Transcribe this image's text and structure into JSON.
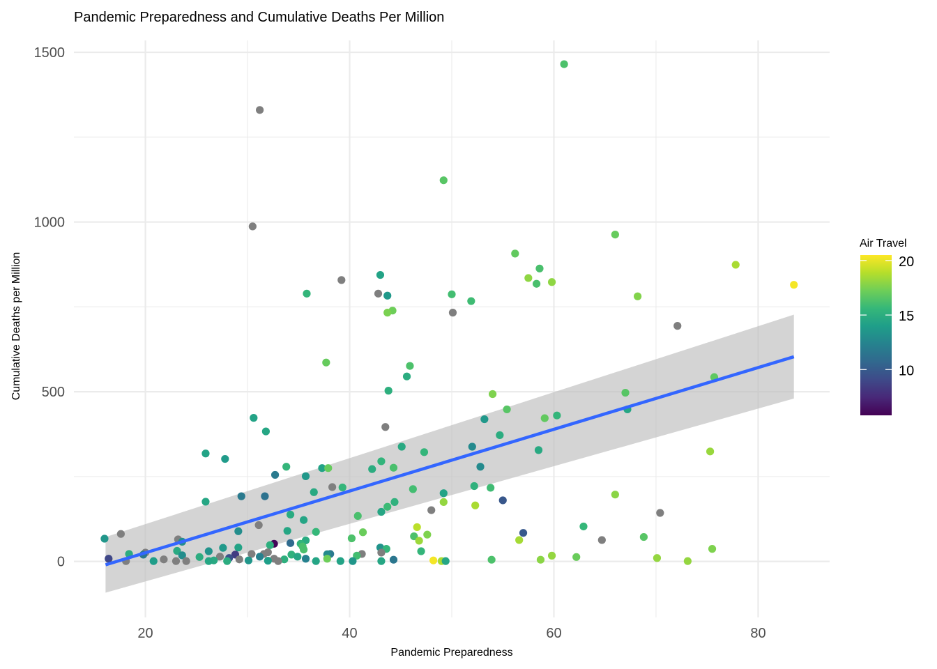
{
  "chart_data": {
    "type": "scatter",
    "title": "Pandemic Preparedness and Cumulative Deaths Per Million",
    "xlabel": "Pandemic Preparedness",
    "ylabel": "Cumulative Deaths per Million",
    "xlim": [
      13,
      87
    ],
    "ylim": [
      -165,
      1535
    ],
    "xticks": [
      20,
      40,
      60,
      80
    ],
    "yticks": [
      0,
      500,
      1000,
      1500
    ],
    "grid": true,
    "color_legend": {
      "title": "Air Travel",
      "ticks": [
        10,
        15,
        20
      ],
      "range": [
        5.8,
        20.5
      ],
      "na_color": "#7f7f7f",
      "palette": [
        "#440154",
        "#482878",
        "#3e4a89",
        "#31688e",
        "#26828e",
        "#1f9e89",
        "#35b779",
        "#6ece58",
        "#b5de2b",
        "#fde725"
      ]
    },
    "trend": {
      "method": "linear fit with confidence band",
      "x": [
        16.1,
        83.5
      ],
      "y": [
        -10,
        603
      ],
      "band_lower": [
        -92,
        480
      ],
      "band_upper": [
        72,
        727
      ],
      "color": "#3366ff",
      "band_color": "#bdbdbd"
    },
    "points": [
      {
        "x": 61.0,
        "y": 1465,
        "c": 16.3
      },
      {
        "x": 31.2,
        "y": 1330,
        "c": null
      },
      {
        "x": 49.2,
        "y": 1123,
        "c": 16.6
      },
      {
        "x": 30.5,
        "y": 987,
        "c": null
      },
      {
        "x": 66.0,
        "y": 963,
        "c": 17.0
      },
      {
        "x": 56.2,
        "y": 907,
        "c": 16.9
      },
      {
        "x": 77.8,
        "y": 874,
        "c": 18.6
      },
      {
        "x": 58.6,
        "y": 863,
        "c": 16.2
      },
      {
        "x": 43.0,
        "y": 844,
        "c": 14.3
      },
      {
        "x": 57.5,
        "y": 835,
        "c": 18.0
      },
      {
        "x": 39.2,
        "y": 829,
        "c": null
      },
      {
        "x": 59.8,
        "y": 823,
        "c": 18.0
      },
      {
        "x": 58.3,
        "y": 818,
        "c": 16.2
      },
      {
        "x": 83.5,
        "y": 815,
        "c": 20.3
      },
      {
        "x": 35.8,
        "y": 789,
        "c": 15.5
      },
      {
        "x": 42.8,
        "y": 789,
        "c": null
      },
      {
        "x": 50.0,
        "y": 787,
        "c": 16.0
      },
      {
        "x": 43.7,
        "y": 783,
        "c": 13.7
      },
      {
        "x": 68.2,
        "y": 781,
        "c": 17.7
      },
      {
        "x": 51.9,
        "y": 767,
        "c": 15.9
      },
      {
        "x": 44.2,
        "y": 739,
        "c": 17.2
      },
      {
        "x": 43.7,
        "y": 733,
        "c": 17.5
      },
      {
        "x": 50.1,
        "y": 733,
        "c": null
      },
      {
        "x": 72.1,
        "y": 694,
        "c": null
      },
      {
        "x": 37.7,
        "y": 586,
        "c": 17.0
      },
      {
        "x": 45.9,
        "y": 576,
        "c": 16.3
      },
      {
        "x": 45.6,
        "y": 545,
        "c": 14.9
      },
      {
        "x": 75.7,
        "y": 543,
        "c": 16.8
      },
      {
        "x": 43.8,
        "y": 503,
        "c": 15.1
      },
      {
        "x": 67.0,
        "y": 497,
        "c": 16.6
      },
      {
        "x": 54.0,
        "y": 493,
        "c": 17.6
      },
      {
        "x": 55.4,
        "y": 448,
        "c": 16.6
      },
      {
        "x": 67.2,
        "y": 448,
        "c": 14.5
      },
      {
        "x": 60.3,
        "y": 430,
        "c": 15.5
      },
      {
        "x": 30.6,
        "y": 423,
        "c": 14.3
      },
      {
        "x": 59.1,
        "y": 422,
        "c": 16.9
      },
      {
        "x": 53.2,
        "y": 419,
        "c": 13.6
      },
      {
        "x": 43.5,
        "y": 396,
        "c": null
      },
      {
        "x": 31.8,
        "y": 383,
        "c": 14.5
      },
      {
        "x": 54.7,
        "y": 372,
        "c": 14.9
      },
      {
        "x": 45.1,
        "y": 338,
        "c": 14.7
      },
      {
        "x": 52.0,
        "y": 338,
        "c": 12.8
      },
      {
        "x": 58.5,
        "y": 328,
        "c": 14.7
      },
      {
        "x": 75.3,
        "y": 324,
        "c": 18.2
      },
      {
        "x": 47.3,
        "y": 322,
        "c": 15.5
      },
      {
        "x": 25.9,
        "y": 318,
        "c": 14.3
      },
      {
        "x": 27.8,
        "y": 302,
        "c": 13.8
      },
      {
        "x": 43.1,
        "y": 295,
        "c": 15.4
      },
      {
        "x": 33.8,
        "y": 279,
        "c": 15.5
      },
      {
        "x": 52.8,
        "y": 279,
        "c": 12.8
      },
      {
        "x": 44.3,
        "y": 276,
        "c": 16.2
      },
      {
        "x": 37.3,
        "y": 275,
        "c": 14.3
      },
      {
        "x": 37.9,
        "y": 275,
        "c": 17.0
      },
      {
        "x": 42.2,
        "y": 272,
        "c": 14.9
      },
      {
        "x": 32.7,
        "y": 255,
        "c": 11.8
      },
      {
        "x": 35.7,
        "y": 251,
        "c": 13.6
      },
      {
        "x": 52.2,
        "y": 222,
        "c": 15.2
      },
      {
        "x": 38.3,
        "y": 219,
        "c": null
      },
      {
        "x": 39.3,
        "y": 218,
        "c": 15.5
      },
      {
        "x": 53.8,
        "y": 217,
        "c": 15.9
      },
      {
        "x": 46.2,
        "y": 213,
        "c": 16.0
      },
      {
        "x": 36.5,
        "y": 204,
        "c": 14.7
      },
      {
        "x": 49.2,
        "y": 201,
        "c": 14.3
      },
      {
        "x": 66.0,
        "y": 197,
        "c": 17.9
      },
      {
        "x": 29.4,
        "y": 192,
        "c": 11.8
      },
      {
        "x": 31.7,
        "y": 192,
        "c": 11.3
      },
      {
        "x": 55.0,
        "y": 180,
        "c": 9.8
      },
      {
        "x": 25.9,
        "y": 176,
        "c": 14.5
      },
      {
        "x": 44.4,
        "y": 175,
        "c": 15.2
      },
      {
        "x": 49.2,
        "y": 175,
        "c": 18.1
      },
      {
        "x": 52.3,
        "y": 165,
        "c": 18.6
      },
      {
        "x": 43.7,
        "y": 161,
        "c": 15.8
      },
      {
        "x": 48.0,
        "y": 151,
        "c": null
      },
      {
        "x": 43.1,
        "y": 146,
        "c": 14.5
      },
      {
        "x": 70.4,
        "y": 143,
        "c": null
      },
      {
        "x": 34.2,
        "y": 138,
        "c": 14.8
      },
      {
        "x": 40.8,
        "y": 134,
        "c": 16.2
      },
      {
        "x": 35.5,
        "y": 122,
        "c": 14.4
      },
      {
        "x": 31.1,
        "y": 107,
        "c": null
      },
      {
        "x": 62.9,
        "y": 103,
        "c": 15.6
      },
      {
        "x": 46.6,
        "y": 101,
        "c": 19.0
      },
      {
        "x": 33.9,
        "y": 90,
        "c": 14.5
      },
      {
        "x": 29.1,
        "y": 89,
        "c": 13.0
      },
      {
        "x": 36.7,
        "y": 87,
        "c": 15.6
      },
      {
        "x": 41.3,
        "y": 86,
        "c": 17.1
      },
      {
        "x": 57.0,
        "y": 84,
        "c": 9.9
      },
      {
        "x": 17.6,
        "y": 81,
        "c": null
      },
      {
        "x": 47.6,
        "y": 79,
        "c": 17.6
      },
      {
        "x": 46.3,
        "y": 74,
        "c": 16.3
      },
      {
        "x": 68.8,
        "y": 72,
        "c": 16.6
      },
      {
        "x": 40.2,
        "y": 68,
        "c": 16.3
      },
      {
        "x": 16.0,
        "y": 67,
        "c": 13.5
      },
      {
        "x": 23.2,
        "y": 65,
        "c": null
      },
      {
        "x": 64.7,
        "y": 63,
        "c": null
      },
      {
        "x": 56.6,
        "y": 63,
        "c": 18.5
      },
      {
        "x": 35.7,
        "y": 62,
        "c": 14.8
      },
      {
        "x": 46.8,
        "y": 61,
        "c": 18.3
      },
      {
        "x": 23.6,
        "y": 58,
        "c": 13.0
      },
      {
        "x": 32.6,
        "y": 52,
        "c": 6.0
      },
      {
        "x": 35.2,
        "y": 52,
        "c": 15.4
      },
      {
        "x": 32.2,
        "y": 48,
        "c": 15.1
      },
      {
        "x": 34.2,
        "y": 54,
        "c": 10.9
      },
      {
        "x": 35.4,
        "y": 44,
        "c": 16.2
      },
      {
        "x": 29.1,
        "y": 41,
        "c": 14.3
      },
      {
        "x": 43.0,
        "y": 41,
        "c": 13.4
      },
      {
        "x": 43.6,
        "y": 37,
        "c": 15.5
      },
      {
        "x": 75.5,
        "y": 37,
        "c": 17.6
      },
      {
        "x": 35.5,
        "y": 35,
        "c": 16.2
      },
      {
        "x": 27.6,
        "y": 40,
        "c": 13.7
      },
      {
        "x": 26.2,
        "y": 30,
        "c": 13.3
      },
      {
        "x": 23.1,
        "y": 31,
        "c": 14.7
      },
      {
        "x": 47.0,
        "y": 30,
        "c": 15.5
      },
      {
        "x": 32.0,
        "y": 27,
        "c": null
      },
      {
        "x": 20.0,
        "y": 26,
        "c": null
      },
      {
        "x": 43.1,
        "y": 26,
        "c": null
      },
      {
        "x": 18.4,
        "y": 22,
        "c": 14.9
      },
      {
        "x": 31.6,
        "y": 22,
        "c": null
      },
      {
        "x": 30.4,
        "y": 22,
        "c": null
      },
      {
        "x": 38.1,
        "y": 22,
        "c": 11.8
      },
      {
        "x": 41.2,
        "y": 22,
        "c": null
      },
      {
        "x": 37.8,
        "y": 21,
        "c": 12.8
      },
      {
        "x": 34.3,
        "y": 20,
        "c": 15.2
      },
      {
        "x": 19.8,
        "y": 20,
        "c": 11.6
      },
      {
        "x": 28.8,
        "y": 20,
        "c": 8.4
      },
      {
        "x": 23.6,
        "y": 18,
        "c": 13.0
      },
      {
        "x": 59.8,
        "y": 17,
        "c": 18.1
      },
      {
        "x": 40.7,
        "y": 17,
        "c": 16.0
      },
      {
        "x": 31.2,
        "y": 14,
        "c": 12.3
      },
      {
        "x": 27.3,
        "y": 14,
        "c": null
      },
      {
        "x": 34.9,
        "y": 14,
        "c": 14.5
      },
      {
        "x": 62.2,
        "y": 13,
        "c": 17.1
      },
      {
        "x": 25.3,
        "y": 13,
        "c": 14.9
      },
      {
        "x": 28.2,
        "y": 10,
        "c": 9.5
      },
      {
        "x": 70.1,
        "y": 10,
        "c": 18.1
      },
      {
        "x": 16.4,
        "y": 8,
        "c": 8.9
      },
      {
        "x": 32.6,
        "y": 8,
        "c": null
      },
      {
        "x": 35.7,
        "y": 8,
        "c": 12.3
      },
      {
        "x": 37.8,
        "y": 8,
        "c": 17.2
      },
      {
        "x": 21.8,
        "y": 6,
        "c": null
      },
      {
        "x": 29.2,
        "y": 6,
        "c": null
      },
      {
        "x": 33.6,
        "y": 6,
        "c": 15.1
      },
      {
        "x": 44.3,
        "y": 5,
        "c": 11.6
      },
      {
        "x": 58.7,
        "y": 5,
        "c": 17.9
      },
      {
        "x": 53.9,
        "y": 5,
        "c": 16.3
      },
      {
        "x": 48.2,
        "y": 3,
        "c": 20.3
      },
      {
        "x": 26.7,
        "y": 3,
        "c": 14.7
      },
      {
        "x": 30.1,
        "y": 3,
        "c": 13.5
      },
      {
        "x": 32.0,
        "y": 2,
        "c": 14.0
      },
      {
        "x": 36.7,
        "y": 1,
        "c": 14.4
      },
      {
        "x": 20.8,
        "y": 1,
        "c": 13.9
      },
      {
        "x": 23.0,
        "y": 1,
        "c": null
      },
      {
        "x": 24.0,
        "y": 1,
        "c": null
      },
      {
        "x": 26.2,
        "y": 1,
        "c": 14.5
      },
      {
        "x": 28.0,
        "y": 1,
        "c": 14.9
      },
      {
        "x": 18.1,
        "y": 1,
        "c": null
      },
      {
        "x": 33.0,
        "y": 1,
        "c": null
      },
      {
        "x": 39.1,
        "y": 1,
        "c": 14.3
      },
      {
        "x": 40.3,
        "y": 1,
        "c": 13.5
      },
      {
        "x": 43.1,
        "y": 1,
        "c": 14.5
      },
      {
        "x": 49.0,
        "y": 1,
        "c": 18.6
      },
      {
        "x": 49.4,
        "y": 1,
        "c": 14.5
      },
      {
        "x": 73.1,
        "y": 1,
        "c": 18.1
      }
    ]
  }
}
